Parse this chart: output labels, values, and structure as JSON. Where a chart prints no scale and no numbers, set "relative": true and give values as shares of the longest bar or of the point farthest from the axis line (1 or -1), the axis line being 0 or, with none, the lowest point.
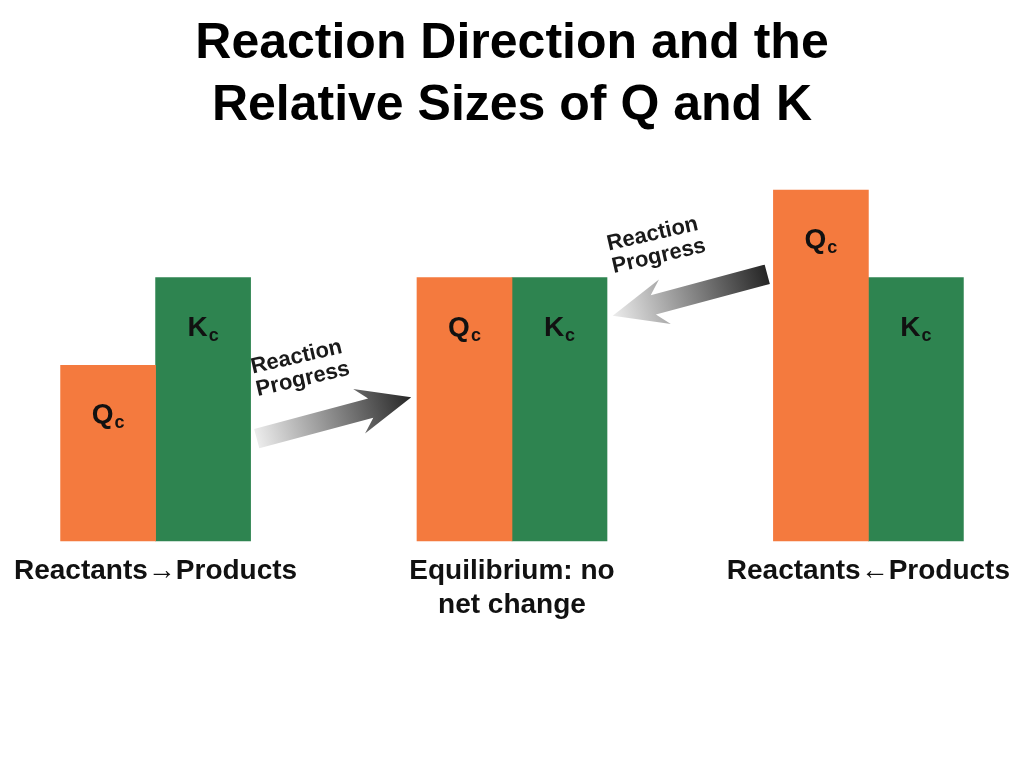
{
  "chart_data": {
    "type": "bar",
    "title": "Reaction Direction and the Relative Sizes of Q and K",
    "categories": [
      "Reactants→Products",
      "Equilibrium: no net change",
      "Reactants←Products"
    ],
    "relative": true,
    "legend": false,
    "grid": false,
    "series": [
      {
        "name": "Q$_{c}$",
        "color": "#f47a3e",
        "values": [
          0.5,
          0.75,
          1
        ]
      },
      {
        "name": "K$_{c}$",
        "color": "#2e8450",
        "values": [
          0.75,
          0.75,
          0.75
        ]
      }
    ],
    "annotations": [
      "Reaction Progress",
      "Reaction Progress"
    ]
  }
}
